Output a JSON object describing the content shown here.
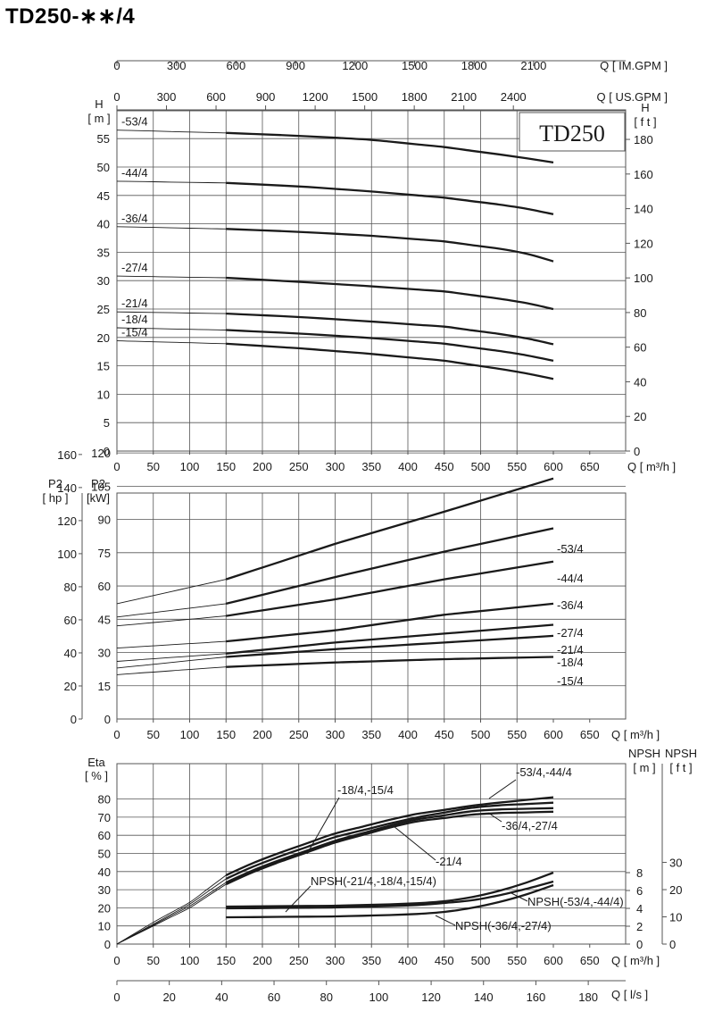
{
  "page_title": "TD250-∗∗/4",
  "colors": {
    "ink": "#1a1a1a",
    "grid": "#555555",
    "background": "#ffffff"
  },
  "chart_data": [
    {
      "id": "head",
      "type": "line",
      "title": "",
      "model_box": "TD250",
      "xlabel": "Q [ m³/h ]",
      "ylabel_left": [
        "H",
        "[ m ]"
      ],
      "ylabel_right": [
        "H",
        "[ f t ]"
      ],
      "xlim": [
        0,
        700
      ],
      "ylim": [
        0,
        60
      ],
      "x_ticks": [
        "0",
        "50",
        "100",
        "150",
        "200",
        "250",
        "300",
        "350",
        "400",
        "450",
        "500",
        "550",
        "600",
        "650"
      ],
      "y_ticks_left": [
        "0",
        "5",
        "10",
        "15",
        "20",
        "25",
        "30",
        "35",
        "40",
        "45",
        "50",
        "55"
      ],
      "y_ticks_right": [
        "0",
        "20",
        "40",
        "60",
        "80",
        "100",
        "120",
        "140",
        "160",
        "180"
      ],
      "top_axes": [
        {
          "label": "Q [ US.GPM ]",
          "ticks": [
            "0",
            "300",
            "600",
            "900",
            "1200",
            "1500",
            "1800",
            "2100",
            "2400"
          ]
        },
        {
          "label": "Q [ IM.GPM ]",
          "ticks": [
            "0",
            "300",
            "600",
            "900",
            "1200",
            "1500",
            "1800",
            "2100"
          ]
        }
      ],
      "grid": true,
      "operating_range": [
        150,
        600
      ],
      "series": [
        {
          "name": "-53/4",
          "x": [
            0,
            150,
            250,
            350,
            450,
            550,
            600
          ],
          "y": [
            56.5,
            56.0,
            55.5,
            54.8,
            53.5,
            51.8,
            50.8
          ]
        },
        {
          "name": "-44/4",
          "x": [
            0,
            150,
            250,
            350,
            450,
            550,
            600
          ],
          "y": [
            47.5,
            47.2,
            46.6,
            45.7,
            44.6,
            43.0,
            41.7
          ]
        },
        {
          "name": "-36/4",
          "x": [
            0,
            150,
            250,
            350,
            450,
            550,
            600
          ],
          "y": [
            39.5,
            39.1,
            38.6,
            37.9,
            36.9,
            35.2,
            33.4
          ]
        },
        {
          "name": "-27/4",
          "x": [
            0,
            150,
            250,
            350,
            450,
            550,
            600
          ],
          "y": [
            30.8,
            30.5,
            29.8,
            29.0,
            28.1,
            26.4,
            25.0
          ]
        },
        {
          "name": "-21/4",
          "x": [
            0,
            150,
            250,
            350,
            450,
            550,
            600
          ],
          "y": [
            24.5,
            24.2,
            23.6,
            22.8,
            21.9,
            20.2,
            18.8
          ]
        },
        {
          "name": "-18/4",
          "x": [
            0,
            150,
            250,
            350,
            450,
            550,
            600
          ],
          "y": [
            21.7,
            21.3,
            20.7,
            19.9,
            18.9,
            17.2,
            15.9
          ]
        },
        {
          "name": "-15/4",
          "x": [
            0,
            150,
            250,
            350,
            450,
            550,
            600
          ],
          "y": [
            19.4,
            18.9,
            18.1,
            17.1,
            15.9,
            14.0,
            12.7
          ]
        }
      ]
    },
    {
      "id": "power",
      "type": "line",
      "title": "",
      "xlabel": "Q [ m³/h ]",
      "ylabel_left_outer": [
        "P2",
        "[ hp ]"
      ],
      "ylabel_left_inner": [
        "P2",
        "[kW]"
      ],
      "xlim": [
        0,
        700
      ],
      "ylim": [
        0,
        135
      ],
      "x_ticks": [
        "0",
        "50",
        "100",
        "150",
        "200",
        "250",
        "300",
        "350",
        "400",
        "450",
        "500",
        "550",
        "600",
        "650"
      ],
      "y_ticks_kw": [
        "0",
        "15",
        "30",
        "45",
        "60",
        "75",
        "90",
        "105",
        "120"
      ],
      "y_ticks_hp": [
        "0",
        "20",
        "40",
        "60",
        "80",
        "100",
        "120",
        "140",
        "160"
      ],
      "grid": true,
      "operating_range": [
        150,
        600
      ],
      "series": [
        {
          "name": "-53/4",
          "x": [
            0,
            150,
            300,
            450,
            600
          ],
          "y": [
            52.0,
            63.0,
            79.0,
            93.5,
            108.5
          ]
        },
        {
          "name": "-44/4",
          "x": [
            0,
            150,
            300,
            450,
            600
          ],
          "y": [
            46.0,
            52.0,
            64.0,
            75.5,
            86.0
          ]
        },
        {
          "name": "-36/4",
          "x": [
            0,
            150,
            300,
            450,
            600
          ],
          "y": [
            42.0,
            46.5,
            54.0,
            63.0,
            71.0
          ]
        },
        {
          "name": "-27/4",
          "x": [
            0,
            150,
            300,
            450,
            600
          ],
          "y": [
            32.0,
            35.0,
            40.0,
            47.0,
            52.0
          ]
        },
        {
          "name": "-21/4",
          "x": [
            0,
            150,
            300,
            450,
            600
          ],
          "y": [
            26.0,
            29.5,
            34.5,
            38.5,
            42.5
          ]
        },
        {
          "name": "-18/4",
          "x": [
            0,
            150,
            300,
            450,
            600
          ],
          "y": [
            23.0,
            28.0,
            31.5,
            34.5,
            37.5
          ]
        },
        {
          "name": "-15/4",
          "x": [
            0,
            150,
            300,
            450,
            600
          ],
          "y": [
            20.0,
            23.5,
            25.5,
            27.0,
            28.0
          ]
        }
      ]
    },
    {
      "id": "efficiency",
      "type": "line",
      "title": "",
      "xlabel": "Q [ m³/h ]",
      "xlabel_bottom": "Q [ l/s ]",
      "ylabel_left": [
        "Eta",
        "[ % ]"
      ],
      "ylabel_npsh_m": [
        "NPSH",
        "[ m ]"
      ],
      "ylabel_npsh_ft": [
        "NPSH",
        "[ f t ]"
      ],
      "xlim": [
        0,
        700
      ],
      "ylim": [
        0,
        90
      ],
      "x_ticks": [
        "0",
        "50",
        "100",
        "150",
        "200",
        "250",
        "300",
        "350",
        "400",
        "450",
        "500",
        "550",
        "600",
        "650"
      ],
      "y_ticks": [
        "0",
        "10",
        "20",
        "30",
        "40",
        "50",
        "60",
        "70",
        "80"
      ],
      "npsh_m_ticks": [
        "0",
        "2",
        "4",
        "6",
        "8"
      ],
      "npsh_ft_ticks": [
        "0",
        "10",
        "20",
        "30"
      ],
      "ls_ticks": [
        "0",
        "20",
        "40",
        "60",
        "80",
        "100",
        "120",
        "140",
        "160",
        "180"
      ],
      "grid": true,
      "operating_range": [
        150,
        600
      ],
      "series": [
        {
          "name": "-53/4,-44/4",
          "x": [
            0,
            50,
            100,
            150,
            200,
            300,
            400,
            500,
            600
          ],
          "y": [
            0,
            12,
            23,
            38,
            47,
            61,
            71,
            77,
            81
          ]
        },
        {
          "name": "-18/4,-15/4",
          "x": [
            0,
            50,
            100,
            150,
            200,
            300,
            400,
            500,
            600
          ],
          "y": [
            0,
            11,
            22,
            36,
            45,
            59,
            69,
            76,
            78
          ]
        },
        {
          "name": "-21/4",
          "x": [
            0,
            50,
            100,
            150,
            200,
            300,
            400,
            500,
            600
          ],
          "y": [
            0,
            10.5,
            21,
            34,
            43,
            57,
            68,
            74,
            75
          ]
        },
        {
          "name": "-36/4,-27/4",
          "x": [
            0,
            50,
            100,
            150,
            200,
            300,
            400,
            500,
            600
          ],
          "y": [
            0,
            10,
            20,
            33,
            42,
            56,
            67,
            72,
            73
          ]
        }
      ],
      "npsh_series": [
        {
          "name": "NPSH(-53/4,-44/4)",
          "x": [
            150,
            300,
            400,
            450,
            500,
            550,
            600
          ],
          "y": [
            4.2,
            4.3,
            4.5,
            4.8,
            5.4,
            6.5,
            8.0
          ]
        },
        {
          "name": "NPSH(-21/4,-18/4,-15/4)",
          "x": [
            150,
            300,
            400,
            450,
            500,
            550,
            600
          ],
          "y": [
            4.0,
            4.1,
            4.3,
            4.6,
            5.0,
            5.9,
            7.0
          ]
        },
        {
          "name": "NPSH(-36/4,-27/4)",
          "x": [
            150,
            300,
            400,
            450,
            500,
            550,
            600
          ],
          "y": [
            3.0,
            3.1,
            3.3,
            3.6,
            4.2,
            5.2,
            6.6
          ]
        }
      ],
      "annotations": [
        "-18/4,-15/4",
        "-53/4,-44/4",
        "-36/4,-27/4",
        "-21/4",
        "NPSH(-21/4,-18/4,-15/4)",
        "NPSH(-53/4,-44/4)",
        "NPSH(-36/4,-27/4)"
      ]
    }
  ]
}
